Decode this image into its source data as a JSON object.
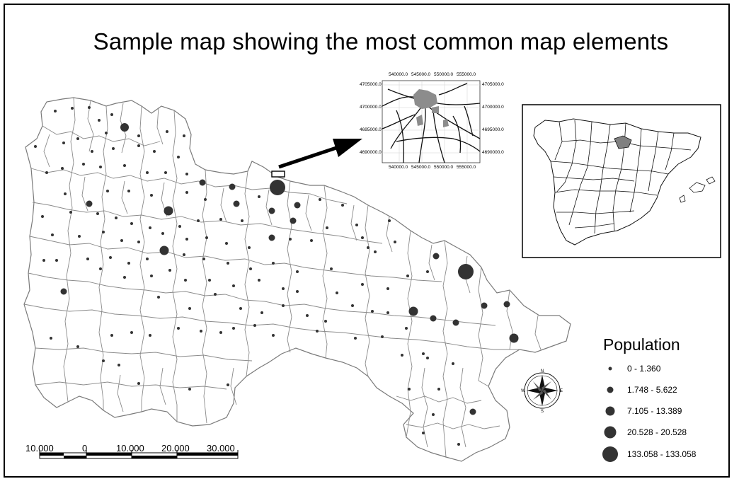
{
  "map": {
    "title": "Sample map showing the most common map elements",
    "legend": {
      "title": "Population",
      "classes": [
        {
          "label": "0 - 1.360"
        },
        {
          "label": "1.748 - 5.622"
        },
        {
          "label": "7.105 - 13.389"
        },
        {
          "label": "20.528 - 20.528"
        },
        {
          "label": "133.058 - 133.058"
        }
      ]
    },
    "scale_bar": {
      "labels": [
        "10.000",
        "0",
        "10.000",
        "20.000",
        "30.000"
      ]
    },
    "detail_inset": {
      "x_ticks": [
        "540000.0",
        "545000.0",
        "550000.0",
        "555000.0"
      ],
      "y_ticks": [
        "4705000.0",
        "4700000.0",
        "4695000.0",
        "4690000.0"
      ]
    },
    "compass": {
      "letters": [
        "N",
        "S",
        "E",
        "W"
      ]
    },
    "colors": {
      "boundary": "#7a7a7a",
      "symbol": "#333333",
      "highlight": "#808080",
      "frame": "#000000"
    }
  }
}
